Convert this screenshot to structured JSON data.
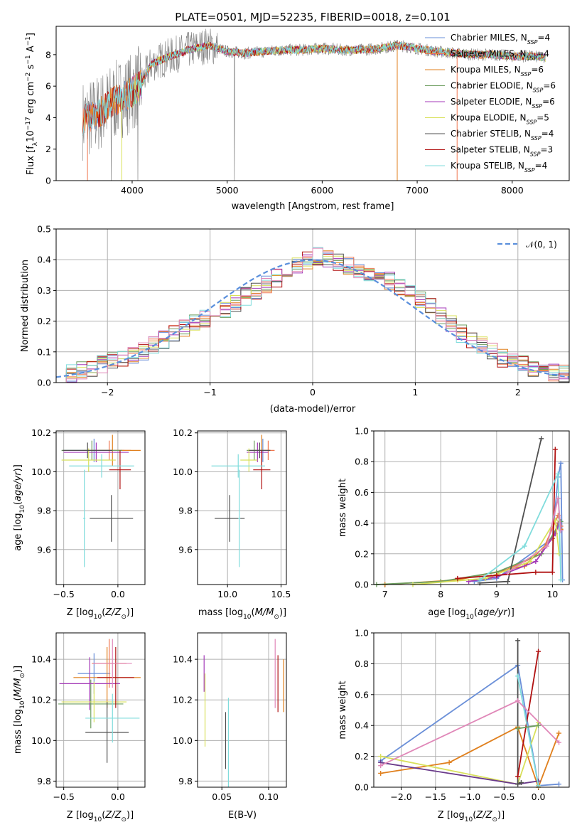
{
  "colors": {
    "Chabrier MILES": "#6a8fd8",
    "Salpeter MILES": "#f0764f",
    "Kroupa MILES": "#e0801e",
    "Chabrier ELODIE": "#6d9e5f",
    "Salpeter ELODIE": "#a43ab8",
    "Kroupa ELODIE": "#d8e05a",
    "Chabrier STELIB": "#505050",
    "Salpeter STELIB": "#b01010",
    "Kroupa STELIB": "#80dcdc",
    "pink": "#e087b8",
    "dark_purple": "#6a3a8a",
    "normal": "#5a8fdc",
    "spectrum_gray": "#808080"
  },
  "chart_data": [
    {
      "type": "line",
      "title": "PLATE=0501, MJD=52235, FIBERID=0018, z=0.101",
      "xlabel": "wavelength [Angstrom, rest frame]",
      "ylabel": "Flux [f_λ 10^-17 erg cm^-2 s^-1 A^-1]",
      "xlim": [
        3200,
        8600
      ],
      "ylim": [
        0,
        9.8
      ],
      "xticks": [
        4000,
        5000,
        6000,
        7000,
        8000
      ],
      "yticks": [
        0,
        2,
        4,
        6,
        8
      ],
      "grid": false,
      "legend_position": "right",
      "series": [
        {
          "name": "Chabrier MILES, N_SSP=4"
        },
        {
          "name": "Salpeter MILES, N_SSP=4"
        },
        {
          "name": "Kroupa MILES, N_SSP=6"
        },
        {
          "name": "Chabrier ELODIE, N_SSP=6"
        },
        {
          "name": "Salpeter ELODIE, N_SSP=6"
        },
        {
          "name": "Kroupa ELODIE, N_SSP=5"
        },
        {
          "name": "Chabrier STELIB, N_SSP=4"
        },
        {
          "name": "Salpeter STELIB, N_SSP=3"
        },
        {
          "name": "Kroupa STELIB, N_SSP=4"
        }
      ],
      "continuum": {
        "x": [
          3500,
          3600,
          3700,
          3800,
          3900,
          4000,
          4100,
          4200,
          4400,
          4600,
          4800,
          5000,
          5200,
          5400,
          5600,
          5800,
          6000,
          6200,
          6400,
          6600,
          6800,
          7000,
          7200,
          7400,
          7600,
          7800,
          8000,
          8200,
          8350
        ],
        "y": [
          3.9,
          4.1,
          4.5,
          5.0,
          5.3,
          5.6,
          6.2,
          7.4,
          7.9,
          8.3,
          8.6,
          8.2,
          8.1,
          8.2,
          8.3,
          8.3,
          8.4,
          8.3,
          8.3,
          8.4,
          8.6,
          8.4,
          8.2,
          8.1,
          8.0,
          8.0,
          7.9,
          7.9,
          7.8
        ]
      }
    },
    {
      "type": "line",
      "xlabel": "(data-model)/error",
      "ylabel": "Normed distribution",
      "xlim": [
        -2.5,
        2.5
      ],
      "ylim": [
        0,
        0.5
      ],
      "xticks": [
        -2,
        -1,
        0,
        1,
        2
      ],
      "yticks": [
        0.0,
        0.1,
        0.2,
        0.3,
        0.4,
        0.5
      ],
      "grid": true,
      "legend": [
        "N(0,1)"
      ],
      "legend_position": "top-right",
      "bin_width": 0.1,
      "mean_histogram": [
        0.03,
        0.03,
        0.04,
        0.05,
        0.06,
        0.07,
        0.08,
        0.09,
        0.1,
        0.12,
        0.14,
        0.16,
        0.18,
        0.2,
        0.21,
        0.22,
        0.24,
        0.26,
        0.28,
        0.3,
        0.32,
        0.34,
        0.36,
        0.38,
        0.4,
        0.41,
        0.4,
        0.39,
        0.38,
        0.37,
        0.36,
        0.35,
        0.33,
        0.31,
        0.29,
        0.27,
        0.25,
        0.22,
        0.19,
        0.16,
        0.14,
        0.12,
        0.1,
        0.08,
        0.07,
        0.06,
        0.05,
        0.04,
        0.03,
        0.03
      ]
    },
    {
      "type": "scatter",
      "xlabel": "Z [log10(Z/Z☉)]",
      "ylabel": "age [log10(age/yr)]",
      "xlim": [
        -0.57,
        0.25
      ],
      "ylim": [
        9.42,
        10.21
      ],
      "xticks": [
        -0.5,
        0.0
      ],
      "yticks": [
        9.6,
        9.8,
        10.0,
        10.2
      ],
      "grid": true,
      "points": [
        {
          "model": "Chabrier MILES",
          "x": -0.22,
          "y": 10.11,
          "xerr": 0.28,
          "yerr": 0.06
        },
        {
          "model": "Salpeter MILES",
          "x": -0.08,
          "y": 10.11,
          "xerr": 0.2,
          "yerr": 0.05
        },
        {
          "model": "Kroupa MILES",
          "x": -0.05,
          "y": 10.11,
          "xerr": 0.26,
          "yerr": 0.08
        },
        {
          "model": "Chabrier ELODIE",
          "x": -0.24,
          "y": 10.11,
          "xerr": 0.28,
          "yerr": 0.05
        },
        {
          "model": "Salpeter ELODIE",
          "x": -0.2,
          "y": 10.1,
          "xerr": 0.3,
          "yerr": 0.05
        },
        {
          "model": "Kroupa ELODIE",
          "x": -0.27,
          "y": 10.06,
          "xerr": 0.25,
          "yerr": 0.06
        },
        {
          "model": "Chabrier STELIB",
          "x": -0.28,
          "y": 10.11,
          "xerr": 0.23,
          "yerr": 0.04
        },
        {
          "model": "Salpeter STELIB",
          "x": 0.02,
          "y": 10.01,
          "xerr": 0.1,
          "yerr": 0.1
        },
        {
          "model": "Kroupa STELIB",
          "x": -0.15,
          "y": 10.03,
          "xerr": 0.3,
          "yerr": 0.06
        },
        {
          "model": "Chabrier STELIB",
          "x": -0.06,
          "y": 9.76,
          "xerr": 0.2,
          "yerr": 0.12
        },
        {
          "model": "Kroupa STELIB",
          "x": -0.31,
          "y": 9.76,
          "xerr": 0.01,
          "yerr": 0.25
        }
      ]
    },
    {
      "type": "scatter",
      "xlabel": "mass [log10(M/M☉)]",
      "xlim": [
        9.72,
        10.55
      ],
      "ylim": [
        9.42,
        10.21
      ],
      "xticks": [
        10.0,
        10.5
      ],
      "yticks": [
        9.6,
        9.8,
        10.0,
        10.2
      ],
      "grid": true,
      "points": [
        {
          "model": "Chabrier MILES",
          "x": 10.33,
          "y": 10.11,
          "xerr": 0.06,
          "yerr": 0.06
        },
        {
          "model": "Salpeter MILES",
          "x": 10.38,
          "y": 10.11,
          "xerr": 0.06,
          "yerr": 0.05
        },
        {
          "model": "Kroupa MILES",
          "x": 10.32,
          "y": 10.11,
          "xerr": 0.08,
          "yerr": 0.08
        },
        {
          "model": "Chabrier ELODIE",
          "x": 10.25,
          "y": 10.11,
          "xerr": 0.07,
          "yerr": 0.05
        },
        {
          "model": "Salpeter ELODIE",
          "x": 10.28,
          "y": 10.1,
          "xerr": 0.1,
          "yerr": 0.05
        },
        {
          "model": "Kroupa ELODIE",
          "x": 10.2,
          "y": 10.06,
          "xerr": 0.08,
          "yerr": 0.06
        },
        {
          "model": "Chabrier STELIB",
          "x": 10.3,
          "y": 10.11,
          "xerr": 0.1,
          "yerr": 0.04
        },
        {
          "model": "Salpeter STELIB",
          "x": 10.32,
          "y": 10.01,
          "xerr": 0.08,
          "yerr": 0.1
        },
        {
          "model": "Kroupa STELIB",
          "x": 10.1,
          "y": 10.03,
          "xerr": 0.25,
          "yerr": 0.06
        },
        {
          "model": "Chabrier STELIB",
          "x": 10.02,
          "y": 9.76,
          "xerr": 0.14,
          "yerr": 0.12
        },
        {
          "model": "Kroupa STELIB",
          "x": 10.11,
          "y": 9.76,
          "xerr": 0.01,
          "yerr": 0.25
        }
      ]
    },
    {
      "type": "line",
      "xlabel": "age [log10(age/yr)]",
      "ylabel": "mass weight",
      "xlim": [
        6.8,
        10.3
      ],
      "ylim": [
        0,
        1.0
      ],
      "xticks": [
        7,
        8,
        9,
        10
      ],
      "yticks": [
        0.0,
        0.2,
        0.4,
        0.6,
        0.8,
        1.0
      ],
      "grid": true,
      "series": [
        {
          "model": "Chabrier MILES",
          "x": [
            8.6,
            9.0,
            10.0,
            10.1,
            10.15,
            10.18
          ],
          "y": [
            0.02,
            0.04,
            0.3,
            0.7,
            0.79,
            0.03
          ]
        },
        {
          "model": "Salpeter MILES",
          "x": [
            8.9,
            9.8,
            10.1,
            10.15
          ],
          "y": [
            0.05,
            0.2,
            0.45,
            0.38
          ]
        },
        {
          "model": "Kroupa MILES",
          "x": [
            7.0,
            8.3,
            9.5,
            10.0,
            10.1,
            10.15
          ],
          "y": [
            0.0,
            0.03,
            0.12,
            0.3,
            0.4,
            0.36
          ]
        },
        {
          "model": "Chabrier ELODIE",
          "x": [
            6.85,
            8.0,
            9.0,
            9.8,
            10.1,
            10.15
          ],
          "y": [
            0.0,
            0.02,
            0.08,
            0.2,
            0.38,
            0.41
          ]
        },
        {
          "model": "Salpeter ELODIE",
          "x": [
            8.5,
            9.0,
            9.7,
            10.05,
            10.12
          ],
          "y": [
            0.02,
            0.05,
            0.15,
            0.33,
            0.4
          ]
        },
        {
          "model": "Kroupa ELODIE",
          "x": [
            7.5,
            8.8,
            9.6,
            10.05,
            10.12
          ],
          "y": [
            0.0,
            0.04,
            0.15,
            0.42,
            0.2
          ]
        },
        {
          "model": "Chabrier STELIB",
          "x": [
            8.7,
            9.2,
            9.8
          ],
          "y": [
            0.01,
            0.02,
            0.95
          ]
        },
        {
          "model": "Salpeter STELIB",
          "x": [
            8.3,
            9.0,
            9.7,
            10.0,
            10.05
          ],
          "y": [
            0.04,
            0.06,
            0.08,
            0.08,
            0.88
          ]
        },
        {
          "model": "Kroupa STELIB",
          "x": [
            8.7,
            9.5,
            10.1,
            10.15
          ],
          "y": [
            0.03,
            0.25,
            0.72,
            0.03
          ]
        },
        {
          "model": "pink",
          "x": [
            9.2,
            9.9,
            10.1,
            10.15
          ],
          "y": [
            0.08,
            0.25,
            0.56,
            0.35
          ]
        }
      ]
    },
    {
      "type": "scatter",
      "xlabel": "Z [log10(Z/Z☉)]",
      "ylabel": "mass [log10(M/M☉)]",
      "xlim": [
        -0.57,
        0.25
      ],
      "ylim": [
        9.77,
        10.53
      ],
      "xticks": [
        -0.5,
        0.0
      ],
      "yticks": [
        9.8,
        10.0,
        10.2,
        10.4
      ],
      "grid": true,
      "points": [
        {
          "model": "Chabrier MILES",
          "x": -0.22,
          "y": 10.33,
          "xerr": 0.15,
          "yerr": 0.1
        },
        {
          "model": "Salpeter MILES",
          "x": -0.08,
          "y": 10.38,
          "xerr": 0.16,
          "yerr": 0.12
        },
        {
          "model": "Kroupa MILES",
          "x": -0.1,
          "y": 10.31,
          "xerr": 0.31,
          "yerr": 0.15
        },
        {
          "model": "Chabrier ELODIE",
          "x": -0.25,
          "y": 10.18,
          "xerr": 0.3,
          "yerr": 0.12
        },
        {
          "model": "Salpeter ELODIE",
          "x": -0.26,
          "y": 10.28,
          "xerr": 0.28,
          "yerr": 0.13
        },
        {
          "model": "Kroupa ELODIE",
          "x": -0.22,
          "y": 10.19,
          "xerr": 0.3,
          "yerr": 0.1
        },
        {
          "model": "Chabrier STELIB",
          "x": -0.1,
          "y": 10.04,
          "xerr": 0.2,
          "yerr": 0.15
        },
        {
          "model": "Salpeter STELIB",
          "x": -0.02,
          "y": 10.31,
          "xerr": 0.17,
          "yerr": 0.15
        },
        {
          "model": "Kroupa STELIB",
          "x": -0.05,
          "y": 10.11,
          "xerr": 0.25,
          "yerr": 0.12
        },
        {
          "model": "pink",
          "x": -0.05,
          "y": 10.38,
          "xerr": 0.18,
          "yerr": 0.12
        }
      ]
    },
    {
      "type": "scatter",
      "xlabel": "E(B-V)",
      "xlim": [
        0.024,
        0.119
      ],
      "ylim": [
        9.77,
        10.53
      ],
      "xticks": [
        0.05,
        0.1
      ],
      "yticks": [
        9.8,
        10.0,
        10.2,
        10.4
      ],
      "grid": true,
      "points": [
        {
          "model": "Salpeter ELODIE",
          "x": 0.031,
          "y": 10.33,
          "yerr": 0.09
        },
        {
          "model": "Kroupa ELODIE",
          "x": 0.032,
          "y": 10.15,
          "yerr": 0.18
        },
        {
          "model": "Chabrier STELIB",
          "x": 0.054,
          "y": 10.0,
          "yerr": 0.14
        },
        {
          "model": "Kroupa STELIB",
          "x": 0.057,
          "y": 9.99,
          "yerr": 0.22
        },
        {
          "model": "pink",
          "x": 0.107,
          "y": 10.33,
          "yerr": 0.17
        },
        {
          "model": "Salpeter STELIB",
          "x": 0.11,
          "y": 10.28,
          "yerr": 0.14
        },
        {
          "model": "Kroupa MILES",
          "x": 0.116,
          "y": 10.27,
          "yerr": 0.13
        }
      ]
    },
    {
      "type": "line",
      "xlabel": "Z [log10(Z/Z☉)]",
      "ylabel": "mass weight",
      "xlim": [
        -2.4,
        0.45
      ],
      "ylim": [
        0,
        1.0
      ],
      "xticks": [
        -2.0,
        -1.5,
        -1.0,
        -0.5,
        0.0
      ],
      "yticks": [
        0.0,
        0.2,
        0.4,
        0.6,
        0.8,
        1.0
      ],
      "grid": true,
      "series": [
        {
          "model": "Chabrier MILES",
          "x": [
            -2.3,
            -0.3,
            0.0,
            0.3
          ],
          "y": [
            0.17,
            0.79,
            0.01,
            0.02
          ]
        },
        {
          "model": "Kroupa MILES",
          "x": [
            -2.3,
            -1.3,
            -0.3,
            0.0,
            0.3
          ],
          "y": [
            0.09,
            0.16,
            0.39,
            0.0,
            0.35
          ]
        },
        {
          "model": "Kroupa ELODIE",
          "x": [
            -2.3,
            -0.3,
            0.0
          ],
          "y": [
            0.2,
            0.02,
            0.42
          ]
        },
        {
          "model": "dark_purple",
          "x": [
            -2.3,
            -0.3,
            0.0
          ],
          "y": [
            0.16,
            0.02,
            0.04
          ]
        },
        {
          "model": "Chabrier STELIB",
          "x": [
            -0.3,
            -0.3,
            -0.25
          ],
          "y": [
            0.95,
            0.02,
            0.03
          ]
        },
        {
          "model": "Salpeter STELIB",
          "x": [
            -0.3,
            0.0
          ],
          "y": [
            0.07,
            0.88
          ]
        },
        {
          "model": "Kroupa STELIB",
          "x": [
            -0.3,
            0.0
          ],
          "y": [
            0.72,
            0.01
          ]
        },
        {
          "model": "pink",
          "x": [
            -2.3,
            -0.3,
            0.3
          ],
          "y": [
            0.14,
            0.56,
            0.29
          ]
        },
        {
          "model": "Chabrier ELODIE",
          "x": [
            -0.3,
            0.0
          ],
          "y": [
            0.38,
            0.4
          ]
        }
      ]
    }
  ],
  "texts": {
    "title": "PLATE=0501, MJD=52235, FIBERID=0018, z=0.101",
    "normal_legend": "𝒩(0, 1)"
  }
}
